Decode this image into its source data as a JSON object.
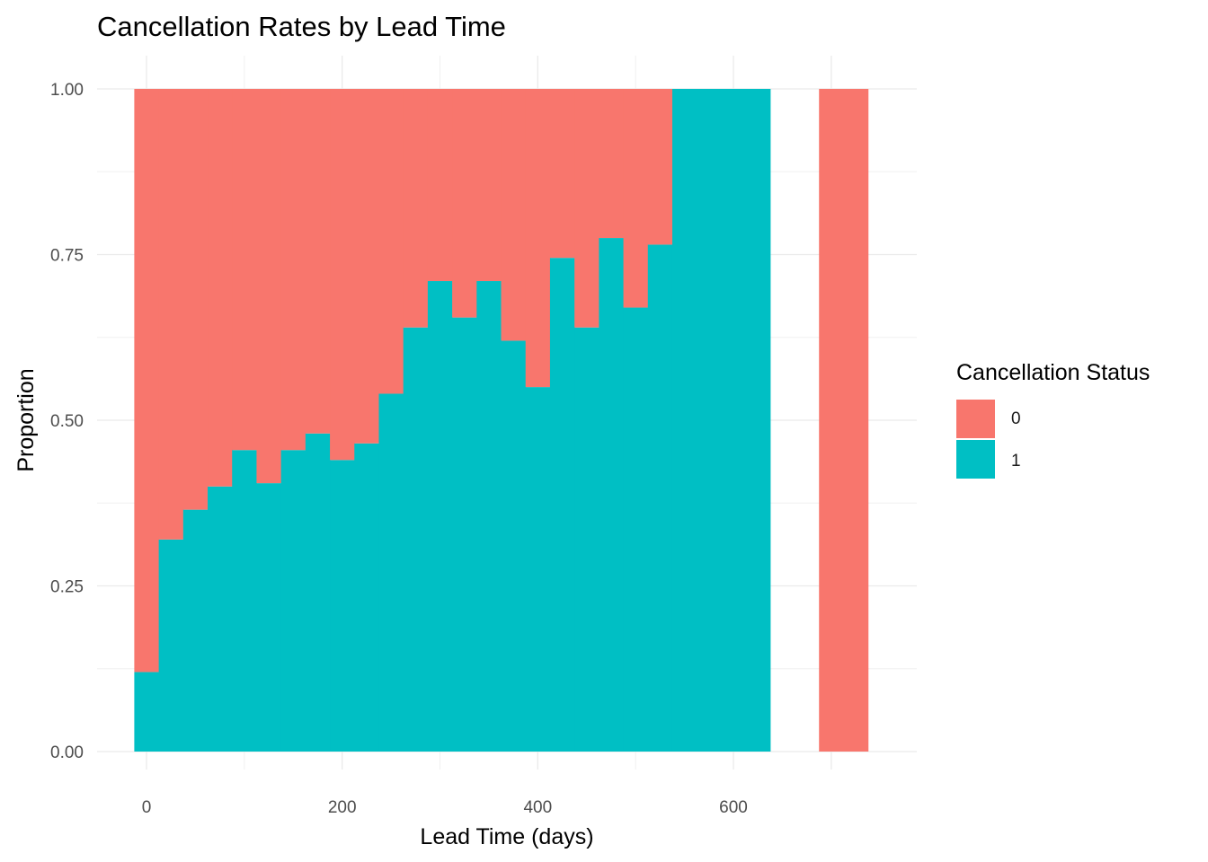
{
  "chart_data": {
    "type": "bar",
    "title": "Cancellation Rates by Lead Time",
    "xlabel": "Lead Time (days)",
    "ylabel": "Proportion",
    "xlim": [
      -15,
      750
    ],
    "ylim": [
      0,
      1
    ],
    "x_ticks": [
      0,
      200,
      400,
      600
    ],
    "x_tick_labels": [
      "0",
      "200",
      "400",
      "600"
    ],
    "y_ticks": [
      0,
      0.25,
      0.5,
      0.75,
      1
    ],
    "y_tick_labels": [
      "0.00",
      "0.25",
      "0.50",
      "0.75",
      "1.00"
    ],
    "bin_width": 25,
    "grid": true,
    "legend": {
      "title": "Cancellation Status",
      "position": "right",
      "entries": [
        {
          "label": "0",
          "color": "#F8766D"
        },
        {
          "label": "1",
          "color": "#00BFC4"
        }
      ]
    },
    "bins": [
      {
        "x": 0,
        "cancel_1": 0.12
      },
      {
        "x": 25,
        "cancel_1": 0.32
      },
      {
        "x": 50,
        "cancel_1": 0.365
      },
      {
        "x": 75,
        "cancel_1": 0.4
      },
      {
        "x": 100,
        "cancel_1": 0.455
      },
      {
        "x": 125,
        "cancel_1": 0.405
      },
      {
        "x": 150,
        "cancel_1": 0.455
      },
      {
        "x": 175,
        "cancel_1": 0.48
      },
      {
        "x": 200,
        "cancel_1": 0.44
      },
      {
        "x": 225,
        "cancel_1": 0.465
      },
      {
        "x": 250,
        "cancel_1": 0.54
      },
      {
        "x": 275,
        "cancel_1": 0.64
      },
      {
        "x": 300,
        "cancel_1": 0.71
      },
      {
        "x": 325,
        "cancel_1": 0.655
      },
      {
        "x": 350,
        "cancel_1": 0.71
      },
      {
        "x": 375,
        "cancel_1": 0.62
      },
      {
        "x": 400,
        "cancel_1": 0.55
      },
      {
        "x": 425,
        "cancel_1": 0.745
      },
      {
        "x": 450,
        "cancel_1": 0.64
      },
      {
        "x": 475,
        "cancel_1": 0.775
      },
      {
        "x": 500,
        "cancel_1": 0.67
      },
      {
        "x": 525,
        "cancel_1": 0.765
      },
      {
        "x": 550,
        "cancel_1": 1.0
      },
      {
        "x": 575,
        "cancel_1": 1.0
      },
      {
        "x": 600,
        "cancel_1": 1.0
      },
      {
        "x": 625,
        "cancel_1": 1.0
      },
      {
        "x": 700,
        "cancel_1": 0.0
      },
      {
        "x": 725,
        "cancel_1": 0.0
      }
    ]
  }
}
